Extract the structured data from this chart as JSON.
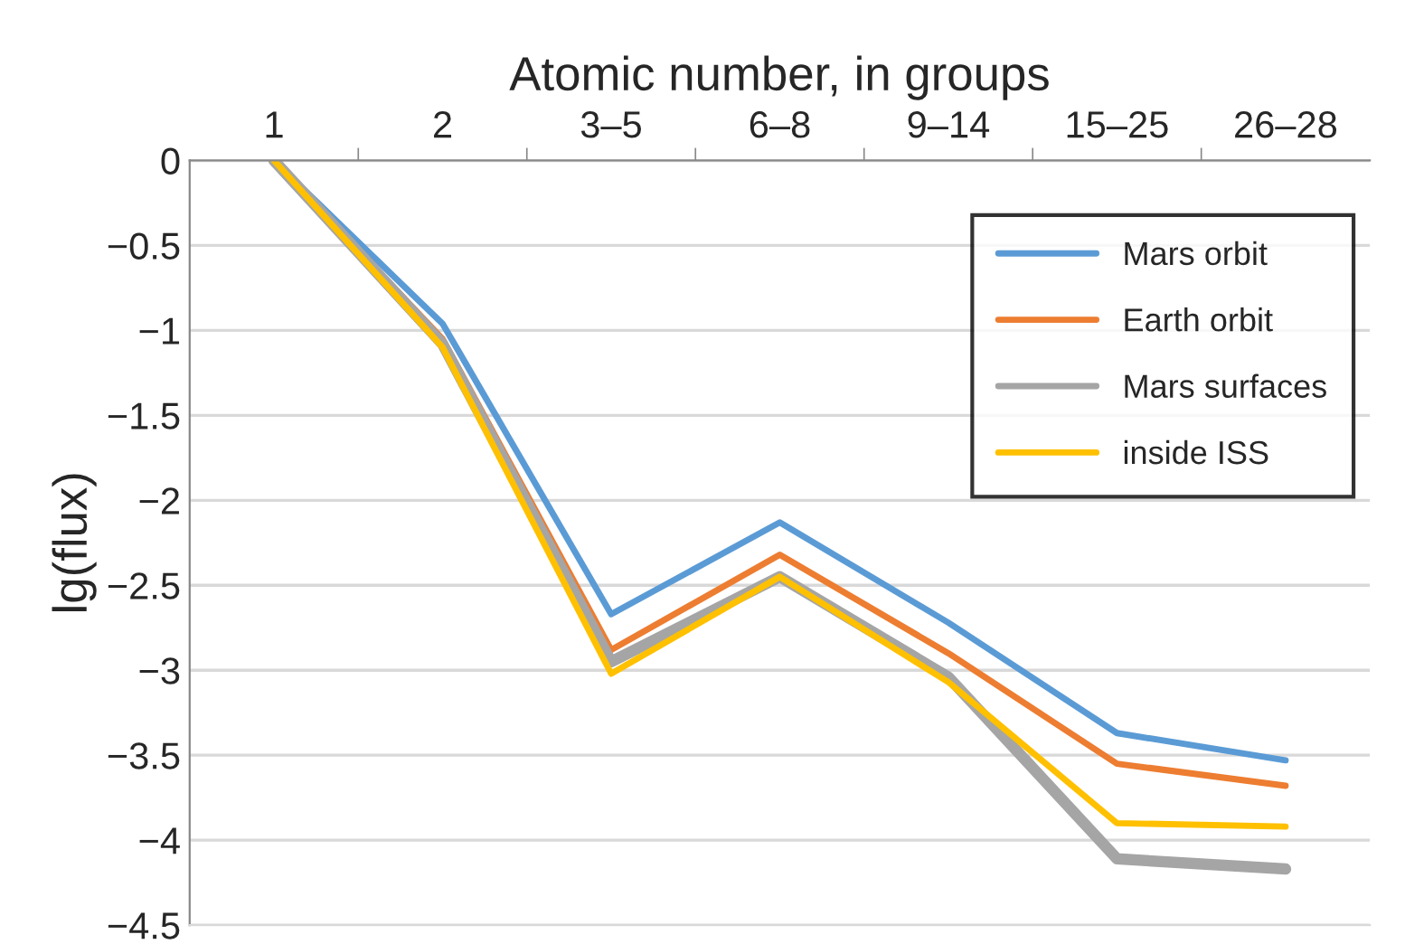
{
  "chart_data": {
    "type": "line",
    "xlabel": "Atomic number, in groups",
    "ylabel": "lg(flux)",
    "categories": [
      "1",
      "2",
      "3–5",
      "6–8",
      "9–14",
      "15–25",
      "26–28"
    ],
    "series": [
      {
        "name": "Mars orbit",
        "color": "#5b9bd5",
        "values": [
          0,
          -0.96,
          -2.67,
          -2.13,
          -2.72,
          -3.37,
          -3.53
        ]
      },
      {
        "name": "Earth orbit",
        "color": "#ed7d31",
        "values": [
          0,
          -1.05,
          -2.88,
          -2.32,
          -2.9,
          -3.55,
          -3.68
        ]
      },
      {
        "name": "Mars surfaces",
        "color": "#a5a5a5",
        "values": [
          0,
          -1.08,
          -2.95,
          -2.45,
          -3.04,
          -4.11,
          -4.17
        ]
      },
      {
        "name": "inside ISS",
        "color": "#ffc000",
        "values": [
          0,
          -1.1,
          -3.02,
          -2.45,
          -3.07,
          -3.9,
          -3.92
        ]
      }
    ],
    "ylim": [
      -4.5,
      0
    ],
    "yticks": [
      0,
      {
        "value": -0.5,
        "label": "−0.5"
      },
      {
        "value": -1,
        "label": "−1"
      },
      {
        "value": -1.5,
        "label": "−1.5"
      },
      {
        "value": -2,
        "label": "−2"
      },
      {
        "value": -2.5,
        "label": "−2.5"
      },
      {
        "value": -3,
        "label": "−3"
      },
      {
        "value": -3.5,
        "label": "−3.5"
      },
      {
        "value": -4,
        "label": "−4"
      },
      {
        "value": -4.5,
        "label": "−4.5"
      }
    ],
    "grid": "y",
    "legend": "top right",
    "marker": "none",
    "line_style": "solid"
  }
}
